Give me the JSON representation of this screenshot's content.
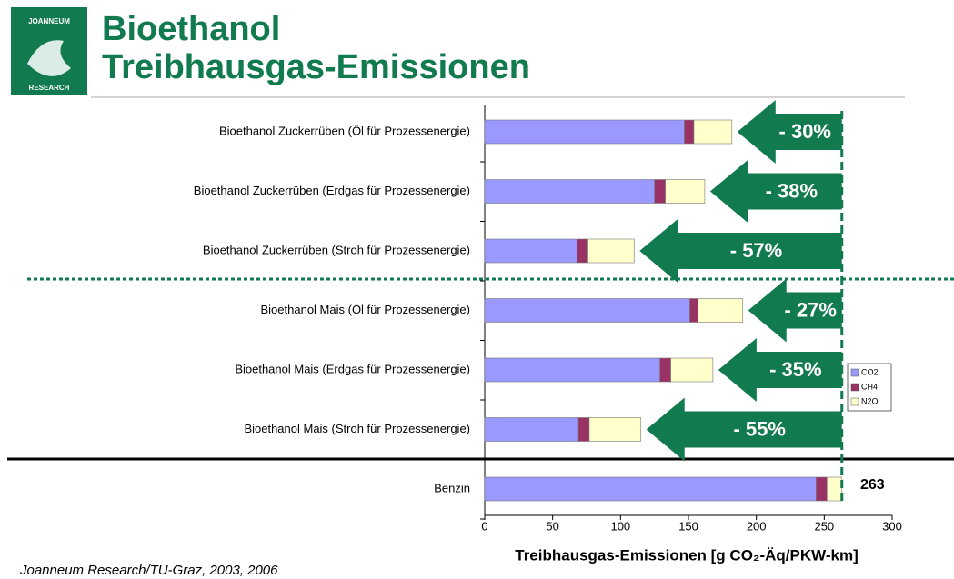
{
  "chart_data": {
    "type": "stacked-barh",
    "title": [
      "Bioethanol",
      "Treibhausgas-Emissionen"
    ],
    "logo": [
      "JOANNEUM",
      "RESEARCH"
    ],
    "categories": [
      "Bioethanol Zuckerrüben (Öl für Prozessenergie)",
      "Bioethanol Zuckerrüben (Erdgas für Prozessenergie)",
      "Bioethanol Zuckerrüben (Stroh für Prozessenergie)",
      "Bioethanol Mais (Öl für Prozessenergie)",
      "Bioethanol Mais (Erdgas für Prozessenergie)",
      "Bioethanol Mais (Stroh für Prozessenergie)",
      "Benzin"
    ],
    "series": [
      {
        "name": "CO2",
        "color": "#9999ff",
        "values": [
          147,
          125,
          68,
          151,
          129,
          69,
          244
        ]
      },
      {
        "name": "CH4",
        "color": "#993366",
        "values": [
          7,
          8,
          8,
          6,
          8,
          8,
          8
        ]
      },
      {
        "name": "N2O",
        "color": "#ffffcc",
        "values": [
          28,
          29,
          34,
          33,
          31,
          38,
          11
        ]
      }
    ],
    "annotations": [
      "- 30%",
      "- 38%",
      "- 57%",
      "- 27%",
      "- 35%",
      "- 55%"
    ],
    "total_label": 263,
    "xlim": [
      0,
      300
    ],
    "xticks": [
      0,
      50,
      100,
      150,
      200,
      250,
      300
    ],
    "xlabel": "Treibhausgas-Emissionen [g CO₂-Äq/PKW-km]",
    "source": "Joanneum Research/TU-Graz, 2003, 2006",
    "legend": "right"
  }
}
